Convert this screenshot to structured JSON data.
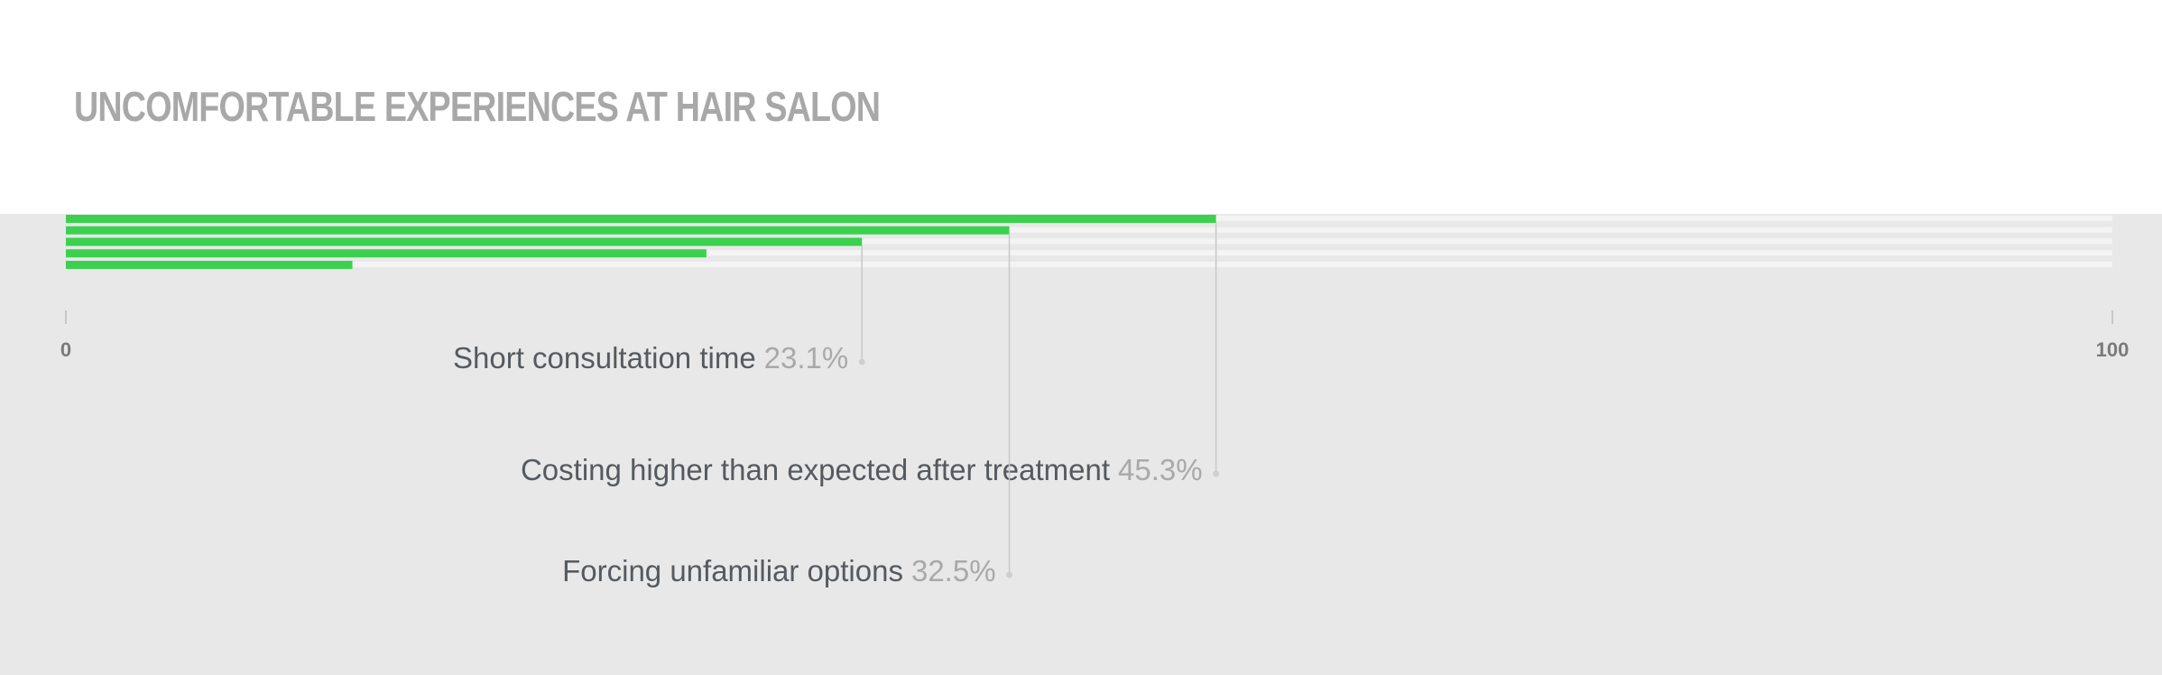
{
  "chart_data": {
    "type": "hbar",
    "title": "UNCOMFORTABLE EXPERIENCES AT HAIR  SALON",
    "categories": [
      null,
      null,
      null,
      null,
      null
    ],
    "values": [
      56.2,
      46.1,
      38.9,
      31.3,
      14.0
    ],
    "color": "#3bd14f",
    "xlim": [
      0,
      100
    ],
    "xticks": [
      0,
      100
    ],
    "annotations": [
      {
        "label": "Short consultation time",
        "value": "23.1%"
      },
      {
        "label": "Costing higher than expected after treatment",
        "value": "45.3%"
      },
      {
        "label": "Forcing unfamiliar options",
        "value": "32.5%"
      }
    ]
  }
}
